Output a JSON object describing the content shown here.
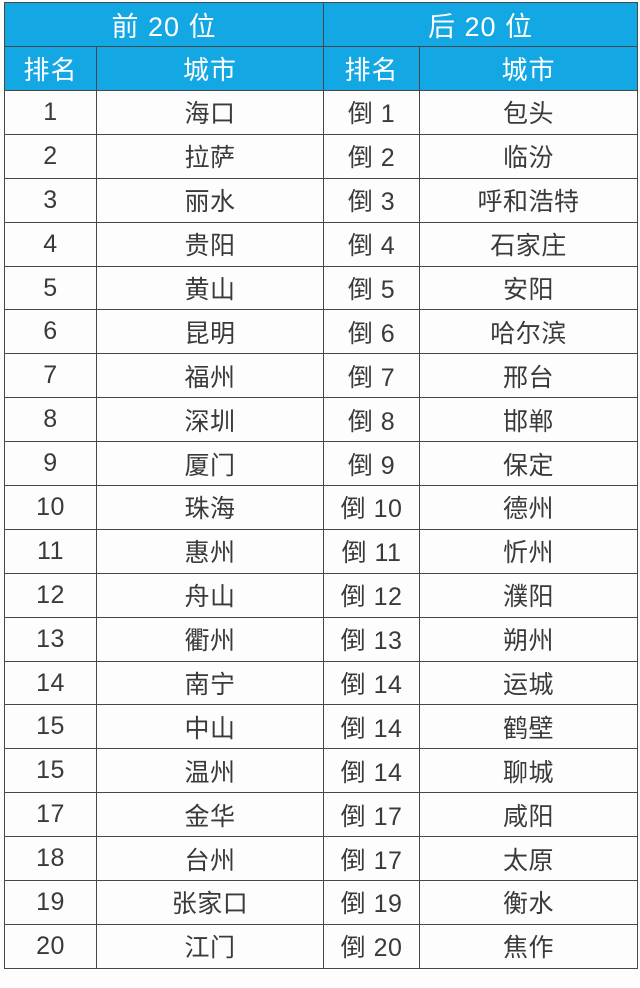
{
  "chart_data": {
    "type": "table",
    "group_headers": [
      "前 20 位",
      "后 20 位"
    ],
    "columns": [
      "排名",
      "城市",
      "排名",
      "城市"
    ],
    "rows": [
      [
        "1",
        "海口",
        "倒 1",
        "包头"
      ],
      [
        "2",
        "拉萨",
        "倒 2",
        "临汾"
      ],
      [
        "3",
        "丽水",
        "倒 3",
        "呼和浩特"
      ],
      [
        "4",
        "贵阳",
        "倒 4",
        "石家庄"
      ],
      [
        "5",
        "黄山",
        "倒 5",
        "安阳"
      ],
      [
        "6",
        "昆明",
        "倒 6",
        "哈尔滨"
      ],
      [
        "7",
        "福州",
        "倒 7",
        "邢台"
      ],
      [
        "8",
        "深圳",
        "倒 8",
        "邯郸"
      ],
      [
        "9",
        "厦门",
        "倒 9",
        "保定"
      ],
      [
        "10",
        "珠海",
        "倒 10",
        "德州"
      ],
      [
        "11",
        "惠州",
        "倒 11",
        "忻州"
      ],
      [
        "12",
        "舟山",
        "倒 12",
        "濮阳"
      ],
      [
        "13",
        "衢州",
        "倒 13",
        "朔州"
      ],
      [
        "14",
        "南宁",
        "倒 14",
        "运城"
      ],
      [
        "15",
        "中山",
        "倒 14",
        "鹤壁"
      ],
      [
        "15",
        "温州",
        "倒 14",
        "聊城"
      ],
      [
        "17",
        "金华",
        "倒 17",
        "咸阳"
      ],
      [
        "18",
        "台州",
        "倒 17",
        "太原"
      ],
      [
        "19",
        "张家口",
        "倒 19",
        "衡水"
      ],
      [
        "20",
        "江门",
        "倒 20",
        "焦作"
      ]
    ],
    "layout_hints": {
      "grid": true,
      "header_rows": 2,
      "column_pairs": 2
    }
  },
  "colors": {
    "header_bg": "#13a8e3",
    "header_text": "#ffffff",
    "grid_line": "#47474a",
    "body_text": "#3a3a3a",
    "page_bg": "#fdfdfe"
  }
}
